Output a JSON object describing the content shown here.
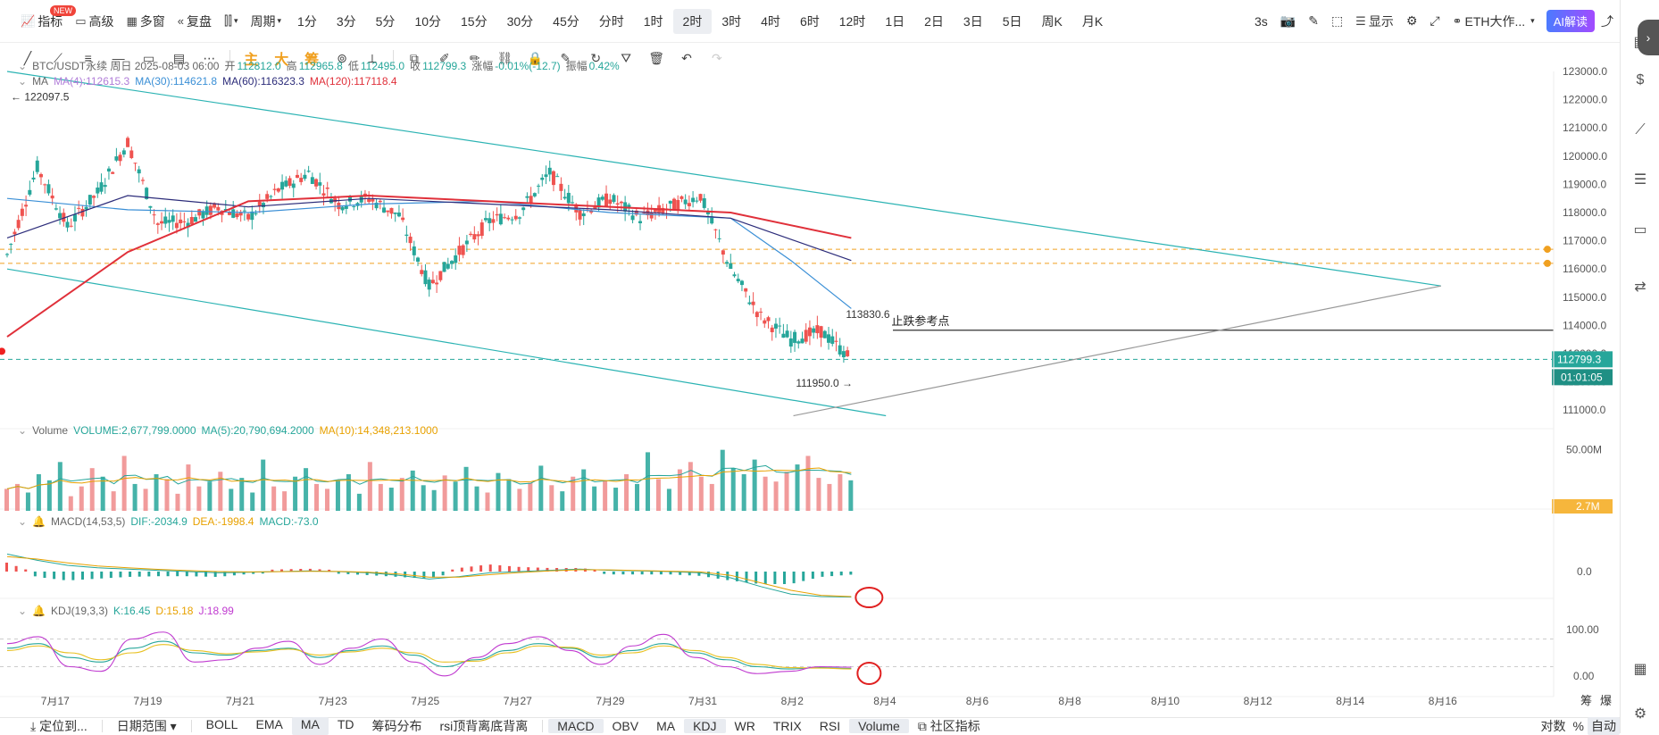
{
  "toolbar": {
    "indicator": "指标",
    "new_badge": "NEW",
    "advanced": "高级",
    "multi": "多窗",
    "replay": "复盘",
    "chart_type": "⫿⫿",
    "period_menu": "周期",
    "periods": [
      "1分",
      "3分",
      "5分",
      "10分",
      "15分",
      "30分",
      "45分",
      "分时",
      "1时",
      "2时",
      "3时",
      "4时",
      "6时",
      "12时",
      "1日",
      "2日",
      "3日",
      "5日",
      "周K",
      "月K"
    ],
    "active_period": "2时",
    "refresh": "3s",
    "display": "显示",
    "symbol": "ETH大作...",
    "ai": "AI解读"
  },
  "drawtools": {
    "cn_tools": [
      "主",
      "大",
      "筹"
    ]
  },
  "header": {
    "symbol_line": "BTC/USDT永续  周日 2025-08-03 06:00",
    "open_label": "开",
    "open": "112812.0",
    "high_label": "高",
    "high": "112965.8",
    "low_label": "低",
    "low": "112495.0",
    "close_label": "收",
    "close": "112799.3",
    "change_label": "涨幅",
    "change": "-0.01%(-12.7)",
    "amp_label": "振幅",
    "amp": "0.42%"
  },
  "ma_legend": {
    "name": "MA",
    "items": [
      {
        "text": "MA(4):112615.3",
        "color": "#b07cd8"
      },
      {
        "text": "MA(30):114621.8",
        "color": "#3a8fd6"
      },
      {
        "text": "MA(60):116323.3",
        "color": "#2c2c7a"
      },
      {
        "text": "MA(120):117118.4",
        "color": "#e0303a"
      }
    ]
  },
  "volume_legend": {
    "name": "Volume",
    "items": [
      {
        "text": "VOLUME:2,677,799.0000",
        "color": "#26a69a"
      },
      {
        "text": "MA(5):20,790,694.2000",
        "color": "#26a69a"
      },
      {
        "text": "MA(10):14,348,213.1000",
        "color": "#e8a100"
      }
    ]
  },
  "macd_legend": {
    "name": "MACD(14,53,5)",
    "items": [
      {
        "text": "DIF:-2034.9",
        "color": "#26a69a"
      },
      {
        "text": "DEA:-1998.4",
        "color": "#e8a100"
      },
      {
        "text": "MACD:-73.0",
        "color": "#26a69a"
      }
    ]
  },
  "kdj_legend": {
    "name": "KDJ(19,3,3)",
    "items": [
      {
        "text": "K:16.45",
        "color": "#26a69a"
      },
      {
        "text": "D:15.18",
        "color": "#e8a100"
      },
      {
        "text": "J:18.99",
        "color": "#c03ad0"
      }
    ]
  },
  "annotations": {
    "high_label": "← 122097.5",
    "high_value": 122097.5,
    "low_label": "111950.0 →",
    "low_value": 111950.0,
    "level_value_label": "113830.6",
    "level_value": 113830.6,
    "level_text": "止跌参考点",
    "current_price": "112799.3",
    "countdown": "01:01:05",
    "volume_tag": "2.7M"
  },
  "chart_data": [
    {
      "type": "candlestick",
      "title": "BTC/USDT永续",
      "x_labels": [
        "7月17",
        "7月19",
        "7月21",
        "7月23",
        "7月25",
        "7月27",
        "7月29",
        "7月31",
        "8月2",
        "8月4",
        "8月6",
        "8月8",
        "8月10",
        "8月12",
        "8月14",
        "8月16"
      ],
      "y_ticks": [
        "123000.0",
        "122000.0",
        "121000.0",
        "120000.0",
        "119000.0",
        "118000.0",
        "117000.0",
        "116000.0",
        "115000.0",
        "114000.0",
        "113000.0",
        "112000.0",
        "111000.0"
      ],
      "ylim": [
        110500,
        123000
      ],
      "close_series": [
        {
          "date": "7月16",
          "value": 116500
        },
        {
          "date": "7月17",
          "value": 119600
        },
        {
          "date": "7月17 12h",
          "value": 117500
        },
        {
          "date": "7月18",
          "value": 118700
        },
        {
          "date": "7月18 12h",
          "value": 120500
        },
        {
          "date": "7月19",
          "value": 117600
        },
        {
          "date": "7月20",
          "value": 117700
        },
        {
          "date": "7月21",
          "value": 118200
        },
        {
          "date": "7月21 12h",
          "value": 117800
        },
        {
          "date": "7月22",
          "value": 118800
        },
        {
          "date": "7月23",
          "value": 119400
        },
        {
          "date": "7月23 12h",
          "value": 118300
        },
        {
          "date": "7月24",
          "value": 118500
        },
        {
          "date": "7月24 12h",
          "value": 117900
        },
        {
          "date": "7月25",
          "value": 115400
        },
        {
          "date": "7月25 12h",
          "value": 116600
        },
        {
          "date": "7月26",
          "value": 117700
        },
        {
          "date": "7月27",
          "value": 118000
        },
        {
          "date": "7月28",
          "value": 119400
        },
        {
          "date": "7月28 12h",
          "value": 118000
        },
        {
          "date": "7月29",
          "value": 118500
        },
        {
          "date": "7月30",
          "value": 117800
        },
        {
          "date": "7月31",
          "value": 118200
        },
        {
          "date": "7月31 12h",
          "value": 118600
        },
        {
          "date": "8月1",
          "value": 116000
        },
        {
          "date": "8月1 12h",
          "value": 114300
        },
        {
          "date": "8月2",
          "value": 113500
        },
        {
          "date": "8月2 12h",
          "value": 113800
        },
        {
          "date": "8月3 06:00",
          "value": 112799.3
        }
      ],
      "ma_lines": [
        {
          "name": "MA(30)",
          "color": "#3a8fd6",
          "values": [
            [
              0,
              118500
            ],
            [
              4,
              118100
            ],
            [
              8,
              118000
            ],
            [
              12,
              118300
            ],
            [
              16,
              118400
            ],
            [
              20,
              118000
            ],
            [
              24,
              117800
            ],
            [
              26,
              116300
            ],
            [
              28,
              114600
            ]
          ]
        },
        {
          "name": "MA(60)",
          "color": "#2c2c7a",
          "values": [
            [
              0,
              117100
            ],
            [
              4,
              118600
            ],
            [
              8,
              118200
            ],
            [
              12,
              118500
            ],
            [
              16,
              118300
            ],
            [
              20,
              118100
            ],
            [
              24,
              117800
            ],
            [
              28,
              116300
            ]
          ]
        },
        {
          "name": "MA(120)",
          "color": "#e0303a",
          "values": [
            [
              0,
              113600
            ],
            [
              4,
              116600
            ],
            [
              8,
              118400
            ],
            [
              12,
              118600
            ],
            [
              16,
              118400
            ],
            [
              20,
              118200
            ],
            [
              24,
              118000
            ],
            [
              28,
              117100
            ]
          ]
        }
      ],
      "horizontal_levels": [
        {
          "value": 116700,
          "style": "dashed",
          "color": "#f0a020"
        },
        {
          "value": 116200,
          "style": "dashed",
          "color": "#f0a020"
        },
        {
          "value": 113830.6,
          "style": "solid",
          "color": "#333"
        },
        {
          "value": 112799.3,
          "style": "dashed",
          "color": "#26a69a"
        }
      ],
      "trend_lines": [
        {
          "name": "channel-upper",
          "from": {
            "x": "7月16",
            "y": 123000
          },
          "to": {
            "x": "8月16",
            "y": 115400
          }
        },
        {
          "name": "channel-lower",
          "from": {
            "x": "7月16",
            "y": 116000
          },
          "to": {
            "x": "8月4",
            "y": 110800
          }
        },
        {
          "name": "support-rising",
          "from": {
            "x": "8月2",
            "y": 110800
          },
          "to": {
            "x": "8月16",
            "y": 115400
          }
        }
      ]
    },
    {
      "type": "bar",
      "title": "Volume",
      "y_ticks": [
        "50.00M"
      ],
      "values_m": [
        18,
        22,
        15,
        30,
        25,
        40,
        12,
        20,
        35,
        28,
        16,
        45,
        22,
        18,
        30,
        26,
        14,
        38,
        20,
        24,
        32,
        18,
        27,
        15,
        42,
        20,
        16,
        28,
        35,
        22,
        18,
        25,
        30,
        14,
        40,
        22,
        19,
        27,
        33,
        21,
        17,
        29,
        24,
        36,
        20,
        15,
        31,
        26,
        18,
        23,
        37,
        21,
        16,
        28,
        34,
        20,
        25,
        19,
        30,
        22,
        48,
        26,
        18,
        34,
        40,
        28,
        22,
        50,
        35,
        30,
        42,
        28,
        24,
        32,
        38,
        45,
        27,
        22,
        30,
        25
      ]
    },
    {
      "type": "line",
      "title": "MACD(14,53,5)",
      "y_ticks": [
        "0.0"
      ],
      "series": [
        {
          "name": "DIF",
          "values": [
            1400,
            900,
            500,
            300,
            200,
            100,
            0,
            -100,
            -50,
            0,
            50,
            0,
            -100,
            -300,
            -600,
            -400,
            -100,
            0,
            100,
            200,
            100,
            50,
            0,
            -100,
            -500,
            -1200,
            -1800,
            -2000,
            -2035
          ]
        },
        {
          "name": "DEA",
          "values": [
            1200,
            1000,
            700,
            450,
            300,
            180,
            80,
            0,
            -30,
            -10,
            20,
            10,
            -50,
            -200,
            -450,
            -450,
            -250,
            -80,
            50,
            150,
            130,
            80,
            30,
            -30,
            -300,
            -900,
            -1500,
            -1900,
            -1998
          ]
        }
      ]
    },
    {
      "type": "line",
      "title": "KDJ(19,3,3)",
      "y_ticks": [
        "100.00",
        "0.00"
      ],
      "ylim": [
        -10,
        110
      ],
      "series": [
        {
          "name": "K",
          "values": [
            60,
            70,
            40,
            30,
            60,
            75,
            50,
            45,
            55,
            60,
            40,
            55,
            65,
            45,
            20,
            35,
            55,
            70,
            60,
            40,
            55,
            70,
            50,
            35,
            20,
            15,
            18,
            16
          ]
        },
        {
          "name": "D",
          "values": [
            55,
            65,
            50,
            35,
            50,
            68,
            55,
            48,
            52,
            58,
            45,
            52,
            60,
            50,
            30,
            32,
            50,
            65,
            62,
            45,
            50,
            65,
            55,
            40,
            25,
            18,
            17,
            15
          ]
        },
        {
          "name": "J",
          "values": [
            70,
            85,
            20,
            10,
            80,
            95,
            30,
            35,
            60,
            75,
            25,
            60,
            80,
            30,
            0,
            40,
            70,
            85,
            55,
            25,
            65,
            90,
            40,
            20,
            5,
            10,
            20,
            19
          ]
        }
      ]
    }
  ],
  "bottom": {
    "locate": "定位到...",
    "range": "日期范围",
    "main_inds": [
      "BOLL",
      "EMA",
      "MA",
      "TD",
      "筹码分布",
      "rsi顶背离底背离"
    ],
    "main_active": "MA",
    "sub_inds": [
      "MACD",
      "OBV",
      "MA",
      "KDJ",
      "WR",
      "TRIX",
      "RSI",
      "Volume"
    ],
    "sub_active": [
      "MACD",
      "KDJ",
      "Volume"
    ],
    "community": "社区指标",
    "log": "对数",
    "pct": "%",
    "auto": "自动"
  },
  "right_small": [
    "筹",
    "爆"
  ]
}
